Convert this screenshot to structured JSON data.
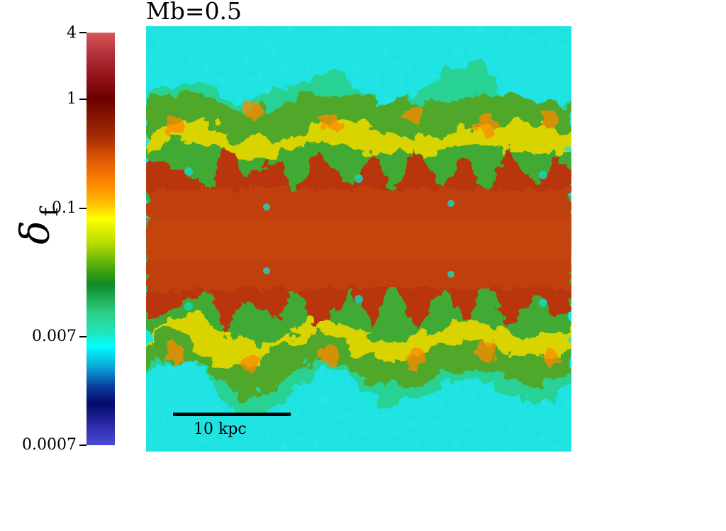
{
  "title": "Mb=0.5",
  "colorbar": {
    "ticks": [
      {
        "label": "4"
      },
      {
        "label": "1"
      },
      {
        "label": "0.1"
      },
      {
        "label": "0.007"
      },
      {
        "label": "0.0007"
      }
    ]
  },
  "scalebar": {
    "label": "10 kpc"
  },
  "colors": {
    "background_field": "#1fe3e3",
    "core_field": "#b8360a",
    "mixing_green": "#4fa82a",
    "mixing_yellow": "#e8d800"
  }
}
